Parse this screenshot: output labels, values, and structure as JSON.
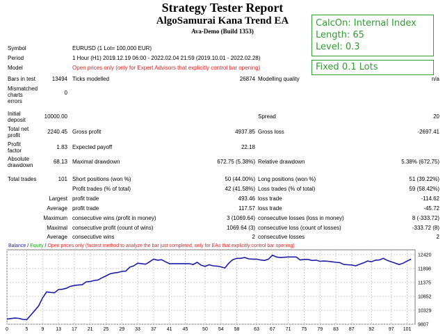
{
  "report": {
    "title": "Strategy Tester Report",
    "subtitle": "AlgoSamurai Kana Trend EA",
    "build": "Ava-Demo (Build 1353)"
  },
  "settings_box": {
    "line1": "CalcOn: Internal Index",
    "line2": "Length: 65",
    "line3": "Level: 0.3"
  },
  "lots_box": {
    "text": "Fixed 0.1 Lots"
  },
  "info": {
    "symbol_label": "Symbol",
    "symbol_value": "EURUSD (1 Lot= 100,000 EUR)",
    "period_label": "Period",
    "period_value": "1 Hour (H1) 2019.12.19 06:00 - 2022.02.04 21:59 (2019.10.01 - 2022.02.28)",
    "model_label": "Model",
    "model_value": "Open prices only (only for Expert Advisors that explicitly control bar opening)",
    "model_color": "#e02020"
  },
  "stats": {
    "bars_label": "Bars in test",
    "bars_value": "13494",
    "ticks_label": "Ticks modelled",
    "ticks_value": "26874",
    "quality_label": "Modelling quality",
    "quality_value": "n/a",
    "mismatch_label_1": "Mismatched",
    "mismatch_label_2": "charts",
    "mismatch_label_3": "errors",
    "mismatch_value": "0",
    "deposit_label_1": "Initial",
    "deposit_label_2": "deposit",
    "deposit_value": "10000.00",
    "spread_label": "Spread",
    "spread_value": "20",
    "netprofit_label_1": "Total net",
    "netprofit_label_2": "profit",
    "netprofit_value": "2240.45",
    "grossprofit_label": "Gross profit",
    "grossprofit_value": "4937.85",
    "grossloss_label": "Gross loss",
    "grossloss_value": "-2697.41",
    "pf_label_1": "Profit",
    "pf_label_2": "factor",
    "pf_value": "1.83",
    "expected_label": "Expected payoff",
    "expected_value": "22.18",
    "absdd_label_1": "Absolute",
    "absdd_label_2": "drawdown",
    "absdd_value": "68.13",
    "maxdd_label": "Maximal drawdown",
    "maxdd_value": "672.75 (5.38%)",
    "reldd_label": "Relative drawdown",
    "reldd_value": "5.38% (672.75)",
    "trades_label": "Total trades",
    "trades_value": "101",
    "short_label": "Short positions (won %)",
    "short_value": "50 (44.00%)",
    "long_label": "Long positions (won %)",
    "long_value": "51 (39.22%)",
    "profit_trades_label": "Profit trades (% of total)",
    "profit_trades_value": "42 (41.58%)",
    "loss_trades_label": "Loss trades (% of total)",
    "loss_trades_value": "59 (58.42%)",
    "largest_label": "Largest",
    "largest_profit_label": "profit trade",
    "largest_profit_value": "493.46",
    "largest_loss_label": "loss trade",
    "largest_loss_value": "-114.62",
    "average_label": "Average",
    "average_profit_label": "profit trade",
    "average_profit_value": "117.57",
    "average_loss_label": "loss trade",
    "average_loss_value": "-45.72",
    "maximum_label": "Maximum",
    "max_cons_wins_label": "consecutive wins (profit in money)",
    "max_cons_wins_value": "3 (1069.64)",
    "max_cons_losses_label": "consecutive losses (loss in money)",
    "max_cons_losses_value": "8 (-333.72)",
    "maximal_label": "Maximal",
    "maximal_profit_label": "consecutive profit (count of wins)",
    "maximal_profit_value": "1069.64 (3)",
    "maximal_loss_label": "consecutive loss (count of losses)",
    "maximal_loss_value": "-333.72 (8)",
    "average2_label": "Average",
    "avg_cons_wins_label": "consecutive wins",
    "avg_cons_wins_value": "2",
    "avg_cons_losses_label": "consecutive losses",
    "avg_cons_losses_value": "2"
  },
  "chart_data": {
    "type": "line",
    "legend": {
      "balance": "Balance",
      "sep1": " / ",
      "equity": "Equity",
      "sep2": " / ",
      "note": "Open prices only (fastest method to analyze the bar just completed, only for EAs that explicitly control bar opening)"
    },
    "colors": {
      "balance": "#1c1ca8",
      "equity": "#22a022",
      "note": "#e02020",
      "grid": "#c8c8c8",
      "frame": "#7a7a7a"
    },
    "ylim": [
      9807,
      12600
    ],
    "xlim": [
      0,
      103
    ],
    "y_ticks": [
      12420,
      11898,
      11375,
      10852,
      10329,
      9807
    ],
    "x_ticks": [
      0,
      5,
      9,
      13,
      17,
      21,
      25,
      29,
      33,
      37,
      41,
      45,
      50,
      54,
      58,
      63,
      67,
      71,
      75,
      79,
      83,
      87,
      92,
      97,
      101
    ],
    "series": [
      {
        "name": "Balance",
        "x": [
          0,
          1,
          2,
          3,
          4,
          5,
          6,
          7,
          8,
          9,
          10,
          11,
          12,
          13,
          14,
          15,
          16,
          17,
          18,
          19,
          20,
          21,
          22,
          23,
          24,
          25,
          26,
          27,
          28,
          29,
          30,
          31,
          32,
          33,
          34,
          35,
          36,
          37,
          38,
          39,
          40,
          41,
          42,
          43,
          44,
          45,
          46,
          47,
          48,
          49,
          50,
          51,
          52,
          53,
          54,
          55,
          56,
          57,
          58,
          59,
          60,
          61,
          62,
          63,
          64,
          65,
          66,
          67,
          68,
          69,
          70,
          71,
          72,
          73,
          74,
          75,
          76,
          77,
          78,
          79,
          80,
          81,
          82,
          83,
          84,
          85,
          86,
          87,
          88,
          89,
          90,
          91,
          92,
          93,
          94,
          95,
          96,
          97,
          98,
          99,
          100,
          101,
          102
        ],
        "y": [
          10000,
          10020,
          10040,
          10030,
          9990,
          9980,
          10150,
          10320,
          10500,
          10800,
          11020,
          11000,
          10990,
          11110,
          11120,
          11160,
          11230,
          11260,
          11280,
          11290,
          11400,
          11410,
          11450,
          11470,
          11550,
          11620,
          11700,
          11730,
          11750,
          11790,
          11800,
          11950,
          12000,
          12100,
          12080,
          12060,
          12150,
          12250,
          12210,
          12230,
          12150,
          12080,
          12080,
          12080,
          12080,
          12080,
          12080,
          12050,
          12130,
          12020,
          11980,
          12040,
          12000,
          11990,
          11960,
          11920,
          12100,
          12230,
          12280,
          12280,
          12310,
          12260,
          12250,
          12250,
          12220,
          12200,
          12250,
          12400,
          12330,
          12310,
          12320,
          12330,
          12330,
          12330,
          12220,
          12240,
          12240,
          12200,
          12210,
          12170,
          12180,
          12170,
          12150,
          12130,
          12120,
          12050,
          12040,
          12030,
          12000,
          12060,
          12110,
          12180,
          12150,
          12210,
          12220,
          12280,
          12200,
          12150,
          12100,
          12050,
          12100,
          12180,
          12250
        ]
      }
    ]
  }
}
